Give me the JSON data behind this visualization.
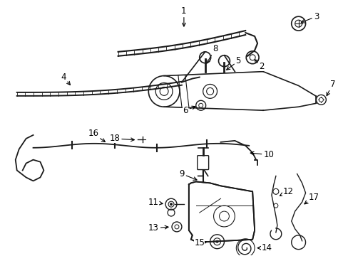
{
  "bg_color": "#ffffff",
  "line_color": "#1a1a1a",
  "figsize": [
    4.89,
    3.6
  ],
  "dpi": 100,
  "label_fontsize": 8.5,
  "arrow_lw": 0.8,
  "part_lw": 1.2
}
